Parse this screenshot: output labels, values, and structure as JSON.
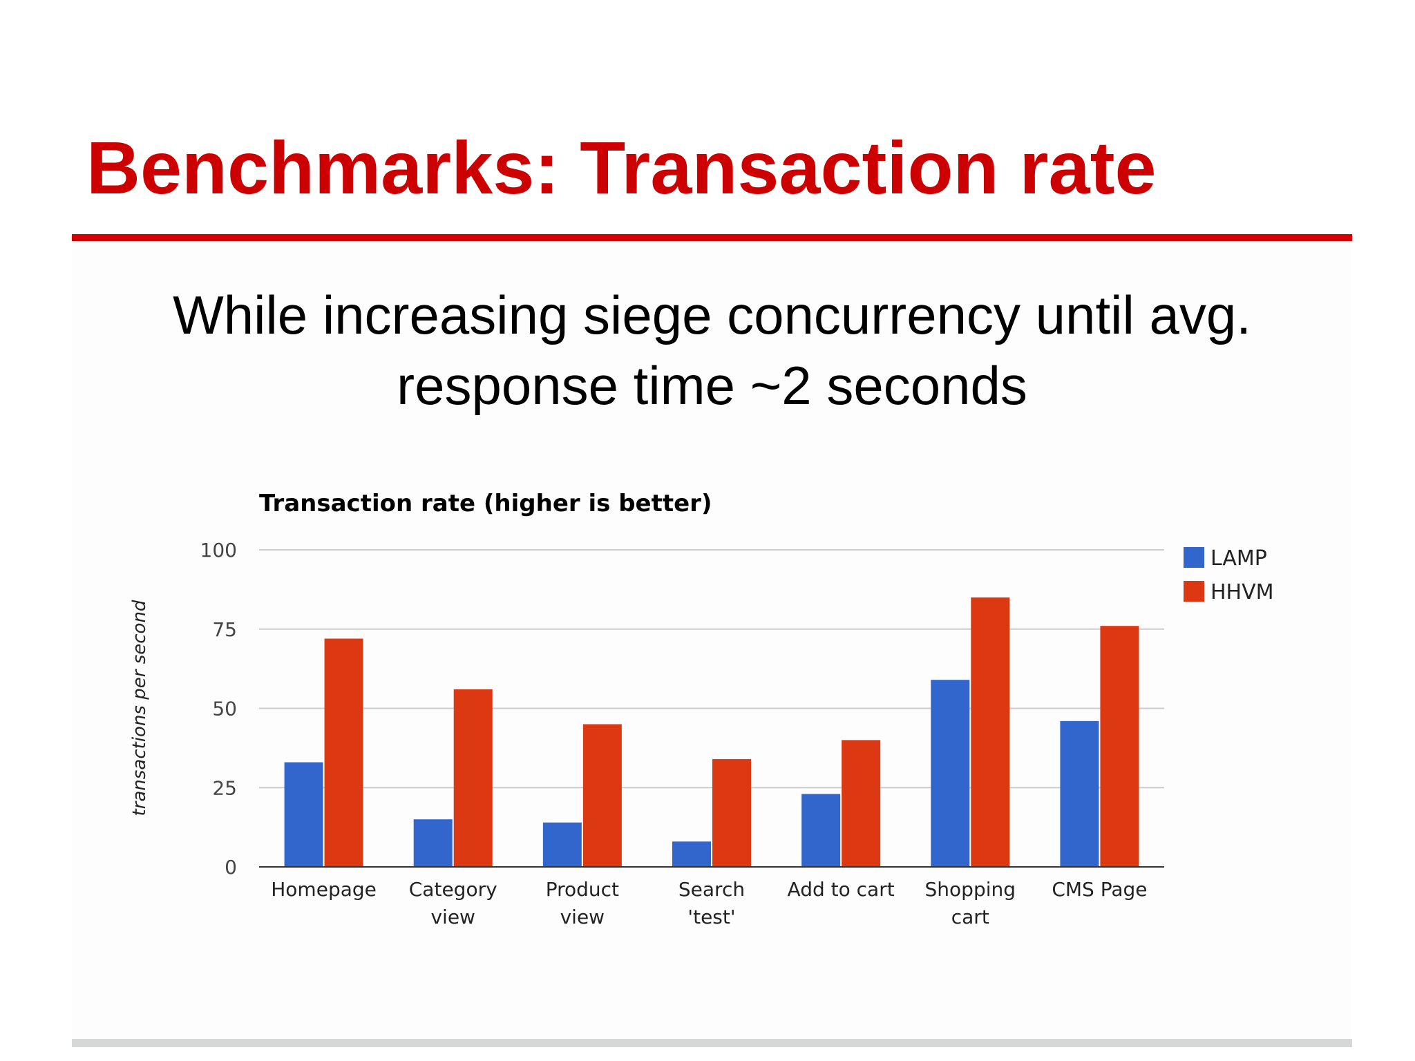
{
  "slide": {
    "title": "Benchmarks: Transaction rate",
    "subtitle_lines": [
      "While increasing siege concurrency until avg.",
      "response time ~2 seconds"
    ]
  },
  "chart_data": {
    "type": "bar",
    "title": "Transaction rate (higher is better)",
    "xlabel": "",
    "ylabel": "transactions per second",
    "ylim": [
      0,
      100
    ],
    "yticks": [
      "0",
      "25",
      "50",
      "75",
      "100"
    ],
    "grid": true,
    "legend_position": "right",
    "categories": [
      [
        "Homepage"
      ],
      [
        "Category",
        "view"
      ],
      [
        "Product",
        "view"
      ],
      [
        "Search",
        "'test'"
      ],
      [
        "Add to cart"
      ],
      [
        "Shopping",
        "cart"
      ],
      [
        "CMS Page"
      ]
    ],
    "series": [
      {
        "name": "LAMP",
        "color": "#3366cc",
        "values": [
          33,
          15,
          14,
          8,
          23,
          59,
          46
        ]
      },
      {
        "name": "HHVM",
        "color": "#dc3912",
        "values": [
          72,
          56,
          45,
          34,
          40,
          85,
          76
        ]
      }
    ]
  }
}
